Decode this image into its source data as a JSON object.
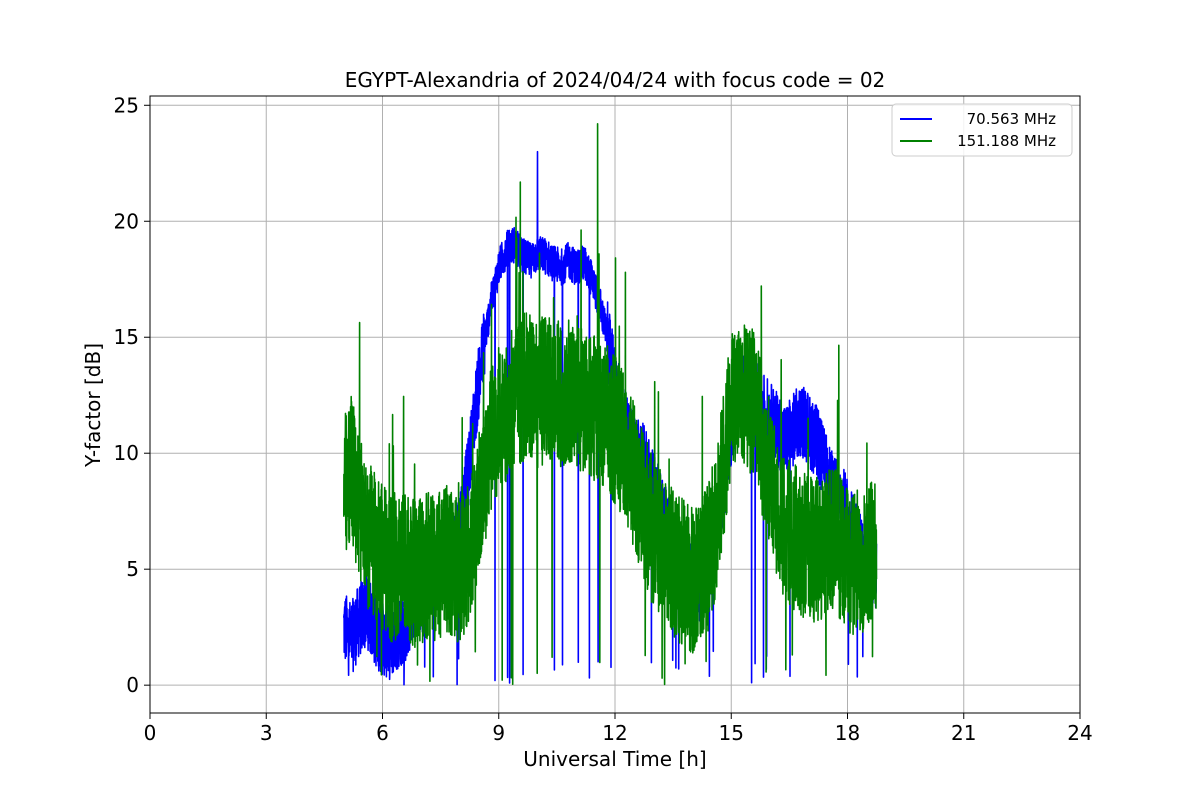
{
  "chart_data": {
    "type": "line",
    "title": "EGYPT-Alexandria of 2024/04/24 with focus code = 02",
    "xlabel": "Universal Time [h]",
    "ylabel": "Y-factor [dB]",
    "xlim": [
      0,
      24
    ],
    "ylim": [
      -1.2,
      25.4
    ],
    "xticks": [
      0,
      3,
      6,
      9,
      12,
      15,
      18,
      21,
      24
    ],
    "xtick_labels": [
      "0",
      "3",
      "6",
      "9",
      "12",
      "15",
      "18",
      "21",
      "24"
    ],
    "yticks": [
      0,
      5,
      10,
      15,
      20,
      25
    ],
    "ytick_labels": [
      "0",
      "5",
      "10",
      "15",
      "20",
      "25"
    ],
    "grid": true,
    "legend_position": "top-right",
    "series": [
      {
        "name": "70.563 MHz",
        "color": "#0000ff",
        "x": [
          5.0,
          5.2,
          5.4,
          5.6,
          5.8,
          6.0,
          6.2,
          6.4,
          6.6,
          6.8,
          7.0,
          7.2,
          7.4,
          7.6,
          7.8,
          8.0,
          8.2,
          8.4,
          8.6,
          8.8,
          9.0,
          9.2,
          9.4,
          9.6,
          9.8,
          10.0,
          10.2,
          10.4,
          10.6,
          10.8,
          11.0,
          11.2,
          11.4,
          11.6,
          11.8,
          12.0,
          12.2,
          12.4,
          12.6,
          12.8,
          13.0,
          13.2,
          13.4,
          13.6,
          13.8,
          14.0,
          14.2,
          14.4,
          14.6,
          14.8,
          15.0,
          15.2,
          15.4,
          15.6,
          15.8,
          16.0,
          16.2,
          16.4,
          16.6,
          16.8,
          17.0,
          17.2,
          17.4,
          17.6,
          17.8,
          18.0,
          18.2,
          18.4,
          18.6,
          18.75
        ],
        "values": [
          2.5,
          2.0,
          2.8,
          3.2,
          2.4,
          2.0,
          1.8,
          2.3,
          2.6,
          3.5,
          3.8,
          4.5,
          5.0,
          5.5,
          6.0,
          7.0,
          9.0,
          12.0,
          14.5,
          16.5,
          18.0,
          18.8,
          19.0,
          18.5,
          18.3,
          18.6,
          18.5,
          18.2,
          18.0,
          18.3,
          18.0,
          18.2,
          17.5,
          16.5,
          15.0,
          13.0,
          11.5,
          10.5,
          10.0,
          9.5,
          8.5,
          7.5,
          6.5,
          5.5,
          5.0,
          4.5,
          4.2,
          4.8,
          6.0,
          8.5,
          11.0,
          12.5,
          13.0,
          12.5,
          12.0,
          11.5,
          11.0,
          10.5,
          11.0,
          11.5,
          11.0,
          10.5,
          9.5,
          8.5,
          8.0,
          7.5,
          6.5,
          5.5,
          5.0,
          4.8
        ],
        "spike_to": 23.0,
        "spike_at": 10.0
      },
      {
        "name": "151.188 MHz",
        "color": "#008000",
        "x": [
          5.0,
          5.2,
          5.4,
          5.6,
          5.8,
          6.0,
          6.2,
          6.4,
          6.6,
          6.8,
          7.0,
          7.2,
          7.4,
          7.6,
          7.8,
          8.0,
          8.2,
          8.4,
          8.6,
          8.8,
          9.0,
          9.2,
          9.4,
          9.6,
          9.8,
          10.0,
          10.2,
          10.4,
          10.6,
          10.8,
          11.0,
          11.2,
          11.4,
          11.6,
          11.8,
          12.0,
          12.2,
          12.4,
          12.6,
          12.8,
          13.0,
          13.2,
          13.4,
          13.6,
          13.8,
          14.0,
          14.2,
          14.4,
          14.6,
          14.8,
          15.0,
          15.2,
          15.4,
          15.6,
          15.8,
          16.0,
          16.2,
          16.4,
          16.6,
          16.8,
          17.0,
          17.2,
          17.4,
          17.6,
          17.8,
          18.0,
          18.2,
          18.4,
          18.6,
          18.75
        ],
        "values": [
          8.5,
          9.5,
          7.5,
          6.5,
          6.0,
          5.5,
          5.0,
          5.2,
          5.0,
          4.8,
          5.0,
          5.2,
          5.0,
          5.5,
          5.2,
          5.0,
          5.5,
          6.5,
          9.0,
          10.5,
          11.5,
          12.0,
          12.5,
          12.8,
          13.0,
          12.5,
          12.8,
          13.0,
          12.5,
          12.8,
          12.5,
          12.3,
          12.0,
          11.8,
          11.5,
          11.0,
          10.5,
          9.5,
          8.5,
          7.5,
          6.5,
          6.0,
          5.5,
          5.0,
          4.8,
          4.5,
          4.8,
          5.5,
          7.0,
          9.5,
          12.0,
          13.0,
          12.5,
          12.0,
          10.5,
          9.0,
          7.5,
          6.5,
          6.5,
          6.0,
          6.0,
          5.8,
          6.0,
          6.5,
          6.0,
          5.5,
          5.2,
          5.5,
          6.0,
          5.5
        ],
        "spike_to": 24.2,
        "spike_at": 11.55
      }
    ]
  }
}
